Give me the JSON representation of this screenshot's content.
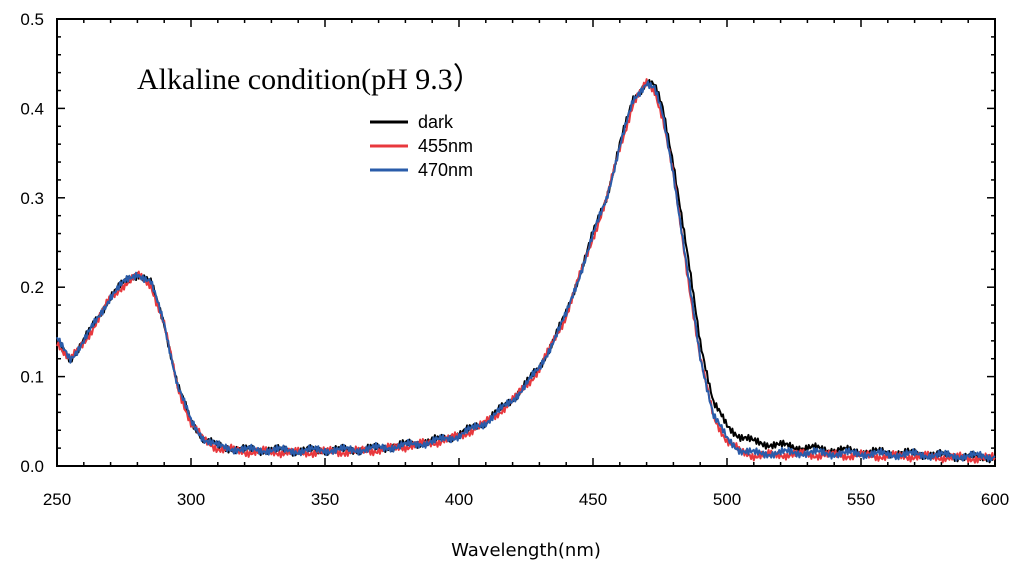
{
  "chart_data": {
    "type": "line",
    "title": "Alkaline condition(pH 9.3）",
    "xlabel": "Wavelength(nm)",
    "ylabel": "",
    "xlim": [
      250,
      600
    ],
    "ylim": [
      0,
      0.5
    ],
    "xticks": [
      250,
      300,
      350,
      400,
      450,
      500,
      550,
      600
    ],
    "yticks": [
      0.0,
      0.1,
      0.2,
      0.3,
      0.4,
      0.5
    ],
    "xtick_labels": [
      "250",
      "300",
      "350",
      "400",
      "450",
      "500",
      "550",
      "600"
    ],
    "ytick_labels": [
      "0.0",
      "0.1",
      "0.2",
      "0.3",
      "0.4",
      "0.5"
    ],
    "grid": false,
    "legend_position": "top-center",
    "series": [
      {
        "name": "dark",
        "color": "#000000",
        "x": [
          250,
          252,
          255,
          260,
          265,
          270,
          275,
          280,
          285,
          290,
          295,
          300,
          305,
          310,
          320,
          330,
          340,
          350,
          360,
          370,
          380,
          390,
          400,
          410,
          420,
          430,
          440,
          450,
          455,
          460,
          465,
          470,
          473,
          476,
          480,
          485,
          490,
          495,
          500,
          505,
          510,
          515,
          520,
          530,
          540,
          550,
          560,
          570,
          580,
          590,
          600
        ],
        "values": [
          0.14,
          0.13,
          0.12,
          0.14,
          0.165,
          0.19,
          0.205,
          0.215,
          0.205,
          0.16,
          0.09,
          0.05,
          0.03,
          0.022,
          0.018,
          0.018,
          0.017,
          0.018,
          0.018,
          0.02,
          0.024,
          0.028,
          0.035,
          0.05,
          0.075,
          0.11,
          0.17,
          0.26,
          0.3,
          0.36,
          0.41,
          0.43,
          0.425,
          0.4,
          0.34,
          0.24,
          0.14,
          0.07,
          0.045,
          0.033,
          0.027,
          0.025,
          0.023,
          0.02,
          0.018,
          0.016,
          0.015,
          0.014,
          0.012,
          0.01,
          0.01
        ]
      },
      {
        "name": "455nm",
        "color": "#e8383d",
        "x": [
          250,
          252,
          255,
          260,
          265,
          270,
          275,
          280,
          285,
          290,
          295,
          300,
          305,
          310,
          320,
          330,
          340,
          350,
          360,
          370,
          380,
          390,
          400,
          410,
          420,
          430,
          440,
          450,
          455,
          460,
          465,
          470,
          473,
          476,
          480,
          485,
          490,
          495,
          500,
          505,
          510,
          515,
          520,
          530,
          540,
          550,
          560,
          570,
          580,
          590,
          600
        ],
        "values": [
          0.14,
          0.13,
          0.118,
          0.138,
          0.162,
          0.188,
          0.203,
          0.213,
          0.203,
          0.158,
          0.088,
          0.048,
          0.028,
          0.02,
          0.016,
          0.016,
          0.015,
          0.016,
          0.016,
          0.018,
          0.022,
          0.026,
          0.033,
          0.048,
          0.073,
          0.108,
          0.168,
          0.256,
          0.297,
          0.356,
          0.405,
          0.428,
          0.42,
          0.39,
          0.325,
          0.22,
          0.12,
          0.055,
          0.028,
          0.016,
          0.012,
          0.012,
          0.013,
          0.013,
          0.012,
          0.012,
          0.011,
          0.011,
          0.01,
          0.009,
          0.009
        ]
      },
      {
        "name": "470nm",
        "color": "#2a5caa",
        "x": [
          250,
          252,
          255,
          260,
          265,
          270,
          275,
          280,
          285,
          290,
          295,
          300,
          305,
          310,
          320,
          330,
          340,
          350,
          360,
          370,
          380,
          390,
          400,
          410,
          420,
          430,
          440,
          450,
          455,
          460,
          465,
          470,
          473,
          476,
          480,
          485,
          490,
          495,
          500,
          505,
          510,
          515,
          520,
          530,
          540,
          550,
          560,
          570,
          580,
          590,
          600
        ],
        "values": [
          0.142,
          0.132,
          0.12,
          0.14,
          0.164,
          0.19,
          0.205,
          0.216,
          0.205,
          0.16,
          0.09,
          0.05,
          0.03,
          0.022,
          0.018,
          0.018,
          0.017,
          0.018,
          0.018,
          0.02,
          0.023,
          0.027,
          0.034,
          0.049,
          0.074,
          0.109,
          0.169,
          0.258,
          0.299,
          0.358,
          0.408,
          0.43,
          0.422,
          0.392,
          0.328,
          0.222,
          0.122,
          0.057,
          0.03,
          0.018,
          0.014,
          0.014,
          0.015,
          0.015,
          0.014,
          0.014,
          0.013,
          0.013,
          0.012,
          0.011,
          0.011
        ]
      }
    ]
  }
}
